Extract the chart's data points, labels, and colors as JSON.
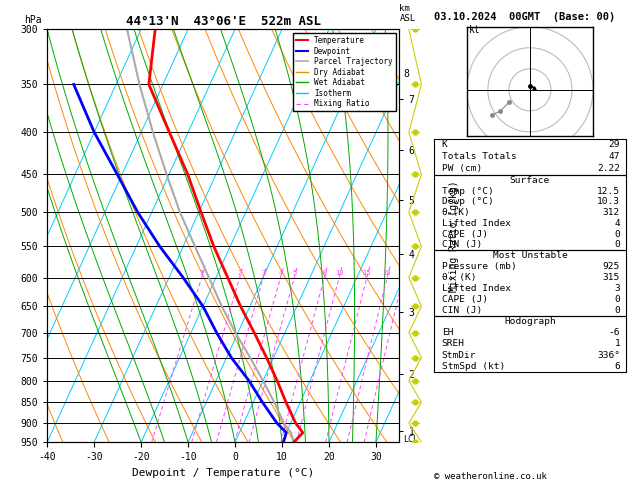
{
  "title_left": "44°13'N  43°06'E  522m ASL",
  "title_right": "03.10.2024  00GMT  (Base: 00)",
  "xlabel": "Dewpoint / Temperature (°C)",
  "ylabel_left": "hPa",
  "ylabel_right2": "Mixing Ratio (g/kg)",
  "pressure_ticks": [
    300,
    350,
    400,
    450,
    500,
    550,
    600,
    650,
    700,
    750,
    800,
    850,
    900,
    950
  ],
  "temp_range": [
    -40,
    35
  ],
  "pres_range": [
    300,
    950
  ],
  "skew_factor": 40,
  "temp_profile": {
    "pressure": [
      950,
      925,
      900,
      850,
      800,
      750,
      700,
      650,
      600,
      550,
      500,
      450,
      400,
      350,
      300
    ],
    "temperature": [
      12.5,
      13.5,
      11.0,
      7.0,
      3.0,
      -1.5,
      -6.5,
      -12.0,
      -17.5,
      -23.5,
      -29.5,
      -36.0,
      -44.0,
      -53.0,
      -57.0
    ],
    "color": "#ff0000",
    "linewidth": 2.0
  },
  "dewpoint_profile": {
    "pressure": [
      950,
      925,
      900,
      850,
      800,
      750,
      700,
      650,
      600,
      550,
      500,
      450,
      400,
      350
    ],
    "temperature": [
      10.3,
      10.0,
      7.0,
      2.0,
      -3.0,
      -9.0,
      -14.5,
      -20.0,
      -27.0,
      -35.0,
      -43.0,
      -51.0,
      -60.0,
      -69.0
    ],
    "color": "#0000ff",
    "linewidth": 2.0
  },
  "parcel_profile": {
    "pressure": [
      950,
      925,
      900,
      850,
      800,
      750,
      700,
      650,
      600,
      550,
      500,
      450,
      400,
      350,
      300
    ],
    "temperature": [
      12.5,
      11.0,
      8.5,
      4.5,
      0.0,
      -5.0,
      -10.5,
      -16.0,
      -21.5,
      -27.5,
      -34.0,
      -40.5,
      -47.5,
      -55.0,
      -63.0
    ],
    "color": "#aaaaaa",
    "linewidth": 1.5
  },
  "isotherm_color": "#00ccff",
  "isotherm_linewidth": 0.7,
  "dry_adiabat_color": "#ff8800",
  "dry_adiabat_linewidth": 0.7,
  "wet_adiabat_color": "#00aa00",
  "wet_adiabat_linewidth": 0.7,
  "mixing_ratio_color": "#ff44ff",
  "mixing_ratio_values": [
    1,
    2,
    3,
    4,
    5,
    8,
    10,
    15,
    20,
    25
  ],
  "km_ticks_pressure": [
    920,
    785,
    660,
    562,
    483,
    420,
    365
  ],
  "km_ticks_labels": [
    "1",
    "2",
    "3",
    "4",
    "5",
    "6",
    "7"
  ],
  "km_label_pressure_extra": [
    340
  ],
  "km_label_extra": [
    "8"
  ],
  "lcl_pressure": 942,
  "wind_barb_pressures": [
    300,
    350,
    400,
    450,
    500,
    550,
    600,
    650,
    700,
    750,
    800,
    850,
    900,
    950
  ],
  "info_panel": {
    "K": 29,
    "Totals_Totals": 47,
    "PW_cm": "2.22",
    "Surface_Temp": "12.5",
    "Surface_Dewp": "10.3",
    "Surface_theta_e": "312",
    "Surface_Lifted_Index": "4",
    "Surface_CAPE": "0",
    "Surface_CIN": "0",
    "MU_Pressure": "925",
    "MU_theta_e": "315",
    "MU_Lifted_Index": "3",
    "MU_CAPE": "0",
    "MU_CIN": "0",
    "EH": "-6",
    "SREH": "1",
    "StmDir": "336°",
    "StmSpd": "6"
  },
  "copyright": "© weatheronline.co.uk"
}
